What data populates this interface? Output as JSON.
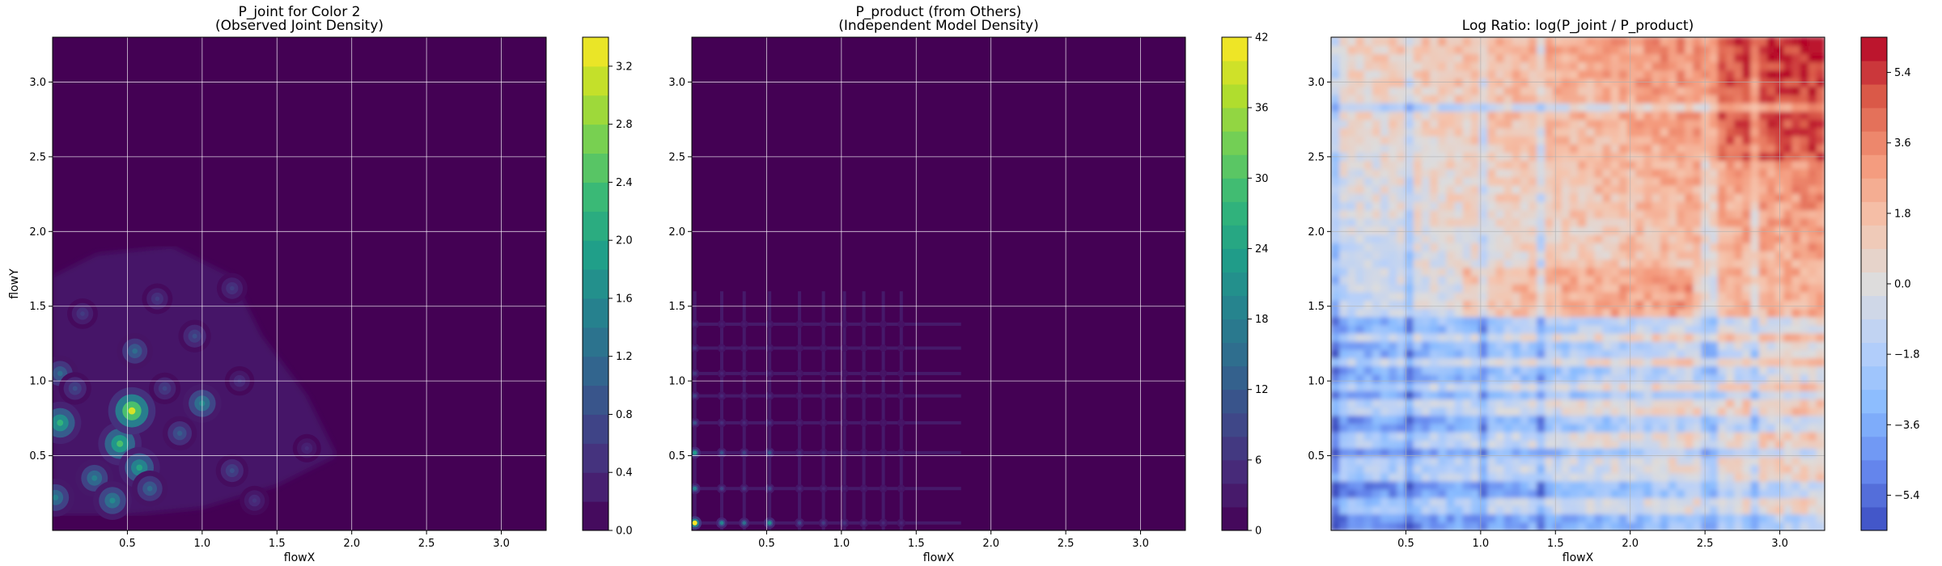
{
  "chart_data": [
    {
      "type": "heatmap",
      "title": "P_joint for Color 2\n(Observed Joint Density)",
      "xlabel": "flowX",
      "ylabel": "flowY",
      "xlim": [
        0,
        3.3
      ],
      "ylim": [
        0,
        3.3
      ],
      "x_ticks": [
        0.5,
        1.0,
        1.5,
        2.0,
        2.5,
        3.0
      ],
      "y_ticks": [
        0.5,
        1.0,
        1.5,
        2.0,
        2.5,
        3.0
      ],
      "grid": true,
      "colormap": "viridis",
      "colorbar_range": [
        0,
        3.4
      ],
      "colorbar_ticks": [
        0.0,
        0.4,
        0.8,
        1.2,
        1.6,
        2.0,
        2.4,
        2.8,
        3.2
      ],
      "colorbar_levels": 17,
      "background_value": 0.0,
      "peaks": [
        {
          "x": 0.05,
          "y": 0.72,
          "value": 2.2
        },
        {
          "x": 0.02,
          "y": 0.22,
          "value": 1.5
        },
        {
          "x": 0.28,
          "y": 0.35,
          "value": 1.5
        },
        {
          "x": 0.45,
          "y": 0.58,
          "value": 2.4
        },
        {
          "x": 0.53,
          "y": 0.8,
          "value": 3.2
        },
        {
          "x": 0.58,
          "y": 0.42,
          "value": 2.0
        },
        {
          "x": 0.4,
          "y": 0.2,
          "value": 1.6
        },
        {
          "x": 0.65,
          "y": 0.28,
          "value": 1.2
        },
        {
          "x": 0.55,
          "y": 1.2,
          "value": 1.2
        },
        {
          "x": 0.85,
          "y": 0.65,
          "value": 1.0
        },
        {
          "x": 1.0,
          "y": 0.85,
          "value": 1.6
        },
        {
          "x": 0.95,
          "y": 1.3,
          "value": 0.8
        },
        {
          "x": 0.2,
          "y": 1.45,
          "value": 0.6
        },
        {
          "x": 0.7,
          "y": 1.55,
          "value": 0.6
        },
        {
          "x": 0.05,
          "y": 1.05,
          "value": 1.2
        },
        {
          "x": 1.2,
          "y": 0.4,
          "value": 0.8
        },
        {
          "x": 1.35,
          "y": 0.2,
          "value": 0.5
        },
        {
          "x": 1.2,
          "y": 1.62,
          "value": 0.6
        },
        {
          "x": 1.7,
          "y": 0.55,
          "value": 0.4
        },
        {
          "x": 1.25,
          "y": 1.0,
          "value": 0.5
        },
        {
          "x": 0.15,
          "y": 0.95,
          "value": 0.8
        },
        {
          "x": 0.75,
          "y": 0.95,
          "value": 0.7
        }
      ]
    },
    {
      "type": "heatmap",
      "title": "P_product (from Others)\n(Independent Model Density)",
      "xlabel": "flowX",
      "ylabel": "",
      "xlim": [
        0,
        3.3
      ],
      "ylim": [
        0,
        3.3
      ],
      "x_ticks": [
        0.5,
        1.0,
        1.5,
        2.0,
        2.5,
        3.0
      ],
      "y_ticks": [
        0.5,
        1.0,
        1.5,
        2.0,
        2.5,
        3.0
      ],
      "grid": true,
      "colormap": "viridis",
      "colorbar_range": [
        0,
        42
      ],
      "colorbar_ticks": [
        0,
        6,
        12,
        18,
        24,
        30,
        36,
        42
      ],
      "colorbar_levels": 21,
      "background_value": 0,
      "x_marginal_peaks": [
        0.02,
        0.2,
        0.35,
        0.52,
        0.72,
        0.88,
        1.02,
        1.15,
        1.28,
        1.4
      ],
      "y_marginal_peaks": [
        0.05,
        0.28,
        0.52,
        0.72,
        0.9,
        1.05,
        1.22,
        1.38
      ],
      "max_value": 40
    },
    {
      "type": "heatmap",
      "title": "Log Ratio: log(P_joint / P_product)",
      "xlabel": "flowX",
      "ylabel": "",
      "xlim": [
        0,
        3.3
      ],
      "ylim": [
        0,
        3.3
      ],
      "x_ticks": [
        0.5,
        1.0,
        1.5,
        2.0,
        2.5,
        3.0
      ],
      "y_ticks": [
        0.5,
        1.0,
        1.5,
        2.0,
        2.5,
        3.0
      ],
      "grid": true,
      "colormap": "coolwarm",
      "colorbar_range": [
        -6.3,
        6.3
      ],
      "colorbar_ticks": [
        -5.4,
        -3.6,
        -1.8,
        0.0,
        1.8,
        3.6,
        5.4
      ],
      "colorbar_tick_labels": [
        "−5.4",
        "−3.6",
        "−1.8",
        "0.0",
        "1.8",
        "3.6",
        "5.4"
      ],
      "colorbar_levels": 21
    }
  ]
}
